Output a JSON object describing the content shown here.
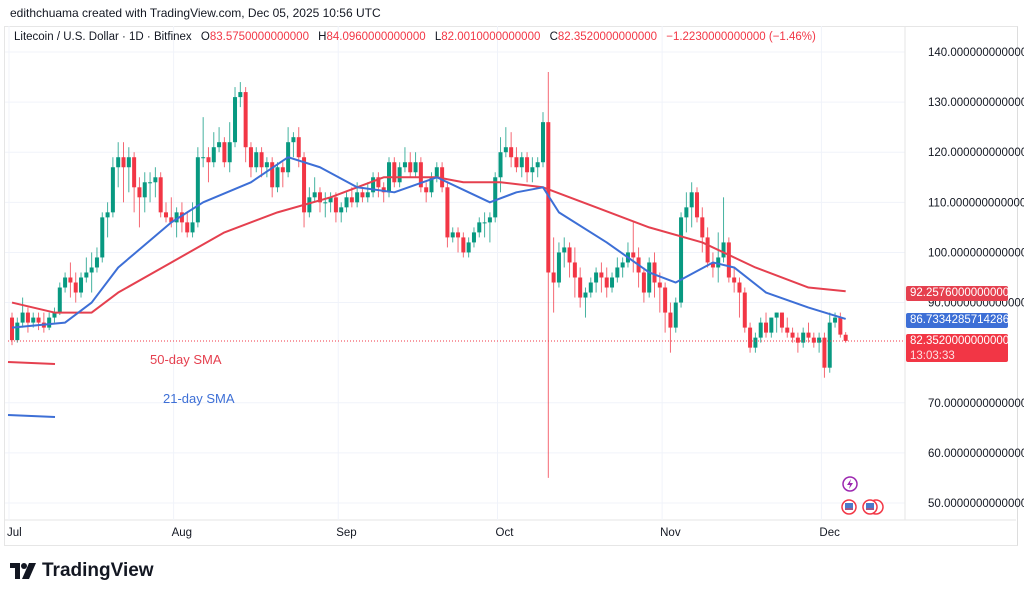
{
  "credit": "edithchuama created with TradingView.com, Dec 05, 2025 10:56 UTC",
  "legend": {
    "symbol": "Litecoin / U.S. Dollar · 1D · Bitfinex",
    "o_key": "O",
    "o": "83.5750000000000",
    "h_key": "H",
    "h": "84.0960000000000",
    "l_key": "L",
    "l": "82.0010000000000",
    "c_key": "C",
    "c": "82.3520000000000",
    "change": "−1.2230000000000 (−1.46%)"
  },
  "price_labels": {
    "sma50": "92.2576000000000",
    "sma21": "86.7334285714286",
    "last": "82.3520000000000",
    "countdown": "13:03:33"
  },
  "annotations": {
    "sma50": "50-day SMA",
    "sma21": "21-day SMA"
  },
  "logo": "TradingView",
  "colors": {
    "up": "#089981",
    "down": "#f23645",
    "sma50": "#e5404f",
    "sma21": "#3d6fd6",
    "events_icon": "#9c27b0"
  },
  "chart_data": {
    "type": "candlestick",
    "title": "Litecoin / U.S. Dollar · 1D · Bitfinex",
    "ylim": [
      45,
      145
    ],
    "y_ticks": [
      50,
      60,
      70,
      90,
      100,
      110,
      120,
      130,
      140
    ],
    "y_tick_labels": [
      "50.0000000000000",
      "60.0000000000000",
      "70.0000000000000",
      "90.0000000000000",
      "100.0000000000000",
      "110.0000000000000",
      "120.0000000000000",
      "130.0000000000000",
      "140.0000000000000"
    ],
    "x_ticks": [
      {
        "label": "Jul",
        "day": 0
      },
      {
        "label": "Aug",
        "day": 31
      },
      {
        "label": "Sep",
        "day": 62
      },
      {
        "label": "Oct",
        "day": 92
      },
      {
        "label": "Nov",
        "day": 123
      },
      {
        "label": "Dec",
        "day": 153
      }
    ],
    "grid": true,
    "ohlc": [
      [
        87,
        88,
        81.5,
        82.5
      ],
      [
        82.5,
        87,
        82,
        86
      ],
      [
        86,
        91,
        85,
        88
      ],
      [
        88,
        89,
        84,
        86
      ],
      [
        86,
        88,
        85,
        87
      ],
      [
        87,
        88,
        84.5,
        86
      ],
      [
        86,
        88,
        84,
        85
      ],
      [
        85,
        88,
        84.5,
        87
      ],
      [
        87,
        89,
        86,
        88
      ],
      [
        88,
        94,
        87.5,
        93
      ],
      [
        93,
        96,
        92,
        95
      ],
      [
        95,
        98,
        91,
        94
      ],
      [
        94,
        96,
        90,
        92
      ],
      [
        92,
        96,
        91,
        95
      ],
      [
        95,
        99,
        94,
        96
      ],
      [
        96,
        100,
        92,
        97
      ],
      [
        97,
        101,
        96,
        99
      ],
      [
        99,
        108,
        98,
        107
      ],
      [
        107,
        110,
        103,
        108
      ],
      [
        108,
        119,
        107,
        117
      ],
      [
        117,
        122,
        113,
        119
      ],
      [
        119,
        122,
        110,
        117
      ],
      [
        117,
        121,
        112,
        119
      ],
      [
        119,
        120,
        108,
        113
      ],
      [
        113,
        115,
        105,
        111
      ],
      [
        111,
        116,
        108,
        114
      ],
      [
        114,
        116,
        110,
        114
      ],
      [
        114,
        117,
        111,
        115
      ],
      [
        115,
        116,
        107,
        108
      ],
      [
        108,
        110,
        106,
        107
      ],
      [
        107,
        111,
        105,
        106
      ],
      [
        106,
        109,
        103,
        108
      ],
      [
        108,
        110,
        104,
        106
      ],
      [
        106,
        108,
        103,
        104
      ],
      [
        104,
        110,
        103,
        106
      ],
      [
        106,
        121,
        105,
        119
      ],
      [
        119,
        127,
        117,
        119
      ],
      [
        119,
        121,
        114,
        118
      ],
      [
        118,
        124,
        117,
        121
      ],
      [
        121,
        125,
        120,
        122
      ],
      [
        122,
        123,
        117,
        118
      ],
      [
        118,
        126,
        116,
        122
      ],
      [
        122,
        133,
        121,
        131
      ],
      [
        131,
        134,
        129,
        132
      ],
      [
        132,
        133,
        118,
        121
      ],
      [
        121,
        122,
        115,
        117
      ],
      [
        117,
        121,
        116,
        120
      ],
      [
        120,
        121,
        115,
        117
      ],
      [
        117,
        119,
        115,
        118
      ],
      [
        118,
        119,
        111,
        113
      ],
      [
        113,
        118,
        112,
        117
      ],
      [
        117,
        118,
        113,
        116
      ],
      [
        116,
        125,
        115,
        122
      ],
      [
        122,
        124,
        119,
        123
      ],
      [
        123,
        125,
        117,
        119
      ],
      [
        119,
        120,
        105,
        108
      ],
      [
        108,
        113,
        107,
        111
      ],
      [
        111,
        115,
        110,
        112
      ],
      [
        112,
        113,
        108,
        110
      ],
      [
        110,
        112,
        107,
        110
      ],
      [
        110,
        112,
        108,
        111
      ],
      [
        111,
        112,
        106,
        108
      ],
      [
        108,
        110,
        106,
        109
      ],
      [
        109,
        112,
        108,
        111
      ],
      [
        111,
        113,
        109,
        110
      ],
      [
        110,
        114,
        109,
        112
      ],
      [
        112,
        113,
        110,
        111
      ],
      [
        111,
        114,
        110,
        112
      ],
      [
        112,
        116,
        111,
        115
      ],
      [
        115,
        116,
        111,
        113
      ],
      [
        113,
        114,
        110,
        112
      ],
      [
        112,
        119,
        111,
        118
      ],
      [
        118,
        119,
        113,
        114
      ],
      [
        114,
        118,
        113,
        117
      ],
      [
        117,
        121,
        116,
        118
      ],
      [
        118,
        120,
        115,
        116
      ],
      [
        116,
        120,
        115,
        118
      ],
      [
        118,
        119,
        112,
        113
      ],
      [
        113,
        114,
        110,
        112
      ],
      [
        112,
        116,
        111,
        115
      ],
      [
        115,
        118,
        114,
        117
      ],
      [
        117,
        118,
        112,
        113
      ],
      [
        113,
        114,
        101,
        103
      ],
      [
        103,
        105,
        102,
        104
      ],
      [
        104,
        105,
        100,
        103
      ],
      [
        103,
        104,
        99,
        100
      ],
      [
        100,
        103,
        99,
        102
      ],
      [
        102,
        105,
        101,
        104
      ],
      [
        104,
        107,
        103,
        106
      ],
      [
        106,
        108,
        103,
        106
      ],
      [
        106,
        108,
        102,
        107
      ],
      [
        107,
        116,
        106,
        115
      ],
      [
        115,
        123,
        112,
        120
      ],
      [
        120,
        125,
        119,
        121
      ],
      [
        121,
        124,
        117,
        119
      ],
      [
        119,
        121,
        116,
        117
      ],
      [
        117,
        120,
        115,
        119
      ],
      [
        119,
        120,
        114,
        116
      ],
      [
        116,
        119,
        114,
        117
      ],
      [
        117,
        119,
        115,
        118
      ],
      [
        118,
        128,
        117,
        126
      ],
      [
        126,
        136,
        55,
        96
      ],
      [
        96,
        103,
        88,
        94
      ],
      [
        94,
        102,
        93,
        100
      ],
      [
        100,
        103,
        97,
        101
      ],
      [
        101,
        102,
        95,
        98
      ],
      [
        98,
        101,
        91,
        95
      ],
      [
        95,
        97,
        89,
        91
      ],
      [
        91,
        93,
        87,
        92
      ],
      [
        92,
        95,
        91,
        94
      ],
      [
        94,
        97,
        92,
        96
      ],
      [
        96,
        98,
        92,
        95
      ],
      [
        95,
        97,
        91,
        93
      ],
      [
        93,
        96,
        92,
        95
      ],
      [
        95,
        99,
        94,
        97
      ],
      [
        97,
        99,
        95,
        98
      ],
      [
        98,
        102,
        97,
        100
      ],
      [
        100,
        106,
        96,
        99
      ],
      [
        99,
        101,
        93,
        96
      ],
      [
        96,
        97,
        90,
        92
      ],
      [
        92,
        99,
        91,
        98
      ],
      [
        98,
        100,
        91,
        94
      ],
      [
        94,
        96,
        88,
        93
      ],
      [
        93,
        94,
        84,
        88
      ],
      [
        88,
        90,
        80,
        85
      ],
      [
        85,
        91,
        84,
        90
      ],
      [
        90,
        108,
        89,
        107
      ],
      [
        107,
        112,
        104,
        109
      ],
      [
        109,
        114,
        105,
        112
      ],
      [
        112,
        113,
        106,
        107
      ],
      [
        107,
        109,
        100,
        103
      ],
      [
        103,
        105,
        97,
        98
      ],
      [
        98,
        100,
        95,
        97
      ],
      [
        97,
        104,
        94,
        99
      ],
      [
        99,
        111,
        98,
        102
      ],
      [
        102,
        103,
        94,
        95
      ],
      [
        95,
        97,
        92,
        94
      ],
      [
        94,
        95,
        87,
        92
      ],
      [
        92,
        93,
        84,
        85
      ],
      [
        85,
        86,
        80,
        81
      ],
      [
        81,
        84,
        80,
        83
      ],
      [
        83,
        87,
        82,
        86
      ],
      [
        86,
        88,
        83,
        84
      ],
      [
        84,
        87,
        83,
        87
      ],
      [
        87,
        88,
        84,
        88
      ],
      [
        88,
        88,
        84,
        85
      ],
      [
        85,
        87,
        83,
        84
      ],
      [
        84,
        85,
        82,
        83
      ],
      [
        83,
        84,
        80,
        82
      ],
      [
        82,
        85,
        81,
        84
      ],
      [
        84,
        86,
        82,
        83
      ],
      [
        83,
        84,
        81,
        82
      ],
      [
        82,
        84,
        80,
        83
      ],
      [
        83,
        84,
        75,
        77
      ],
      [
        77,
        88,
        76,
        86
      ],
      [
        86,
        88,
        85,
        87
      ],
      [
        87,
        88,
        83,
        83.6
      ],
      [
        83.575,
        84.096,
        82.001,
        82.352
      ]
    ],
    "series": [
      {
        "name": "50-day SMA",
        "points": [
          [
            0,
            90
          ],
          [
            8,
            88
          ],
          [
            15,
            88
          ],
          [
            20,
            92
          ],
          [
            30,
            98
          ],
          [
            40,
            104
          ],
          [
            50,
            108
          ],
          [
            60,
            111
          ],
          [
            70,
            115
          ],
          [
            80,
            115
          ],
          [
            85,
            114
          ],
          [
            92,
            114
          ],
          [
            100,
            113
          ],
          [
            110,
            109
          ],
          [
            120,
            105
          ],
          [
            130,
            102
          ],
          [
            140,
            97
          ],
          [
            150,
            93
          ],
          [
            157,
            92.2576
          ]
        ]
      },
      {
        "name": "21-day SMA",
        "points": [
          [
            0,
            85
          ],
          [
            10,
            86
          ],
          [
            15,
            90
          ],
          [
            20,
            97
          ],
          [
            30,
            106
          ],
          [
            36,
            110
          ],
          [
            45,
            114
          ],
          [
            52,
            119
          ],
          [
            58,
            117
          ],
          [
            65,
            113
          ],
          [
            72,
            112
          ],
          [
            80,
            115
          ],
          [
            86,
            112
          ],
          [
            90,
            110
          ],
          [
            95,
            112
          ],
          [
            100,
            113
          ],
          [
            103,
            108
          ],
          [
            112,
            102
          ],
          [
            120,
            96
          ],
          [
            125,
            94
          ],
          [
            132,
            98
          ],
          [
            136,
            97
          ],
          [
            142,
            92
          ],
          [
            150,
            89
          ],
          [
            157,
            86.7334
          ]
        ]
      }
    ]
  }
}
